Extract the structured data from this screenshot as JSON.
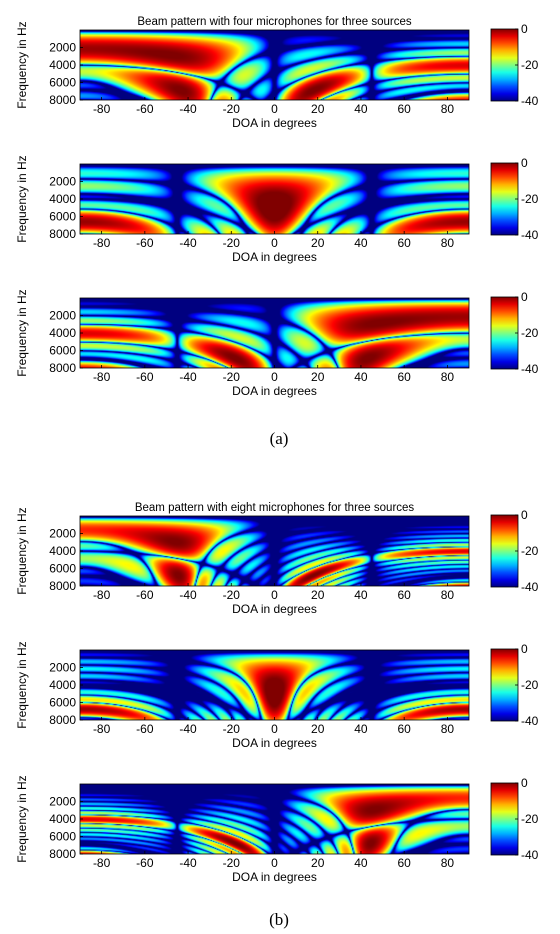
{
  "figure": {
    "panels": [
      {
        "caption": "(a)",
        "title": "Beam pattern with four microphones for three sources",
        "microphones": 4
      },
      {
        "caption": "(b)",
        "title": "Beam pattern with eight microphones for three sources",
        "microphones": 8
      }
    ]
  },
  "chart_data": [
    {
      "type": "heatmap",
      "group": "(a)",
      "title": "Beam pattern with four microphones for three sources",
      "xlabel": "DOA in degrees",
      "ylabel": "Frequency in Hz",
      "xlim": [
        -90,
        90
      ],
      "ylim": [
        0,
        8000
      ],
      "y_reversed": true,
      "x_ticks": [
        -80,
        -60,
        -40,
        -20,
        0,
        20,
        40,
        60,
        80
      ],
      "y_ticks": [
        2000,
        4000,
        6000,
        8000
      ],
      "colorbar": {
        "ticks": [
          0,
          -20,
          -40
        ],
        "range": [
          -40,
          0
        ],
        "colormap": "jet"
      },
      "mics": 4,
      "steer_deg": -45,
      "nulls_deg": [
        0,
        45
      ]
    },
    {
      "type": "heatmap",
      "group": "(a)",
      "title": "",
      "xlabel": "DOA in degrees",
      "ylabel": "Frequency in Hz",
      "xlim": [
        -90,
        90
      ],
      "ylim": [
        0,
        8000
      ],
      "y_reversed": true,
      "x_ticks": [
        -80,
        -60,
        -40,
        -20,
        0,
        20,
        40,
        60,
        80
      ],
      "y_ticks": [
        2000,
        4000,
        6000,
        8000
      ],
      "colorbar": {
        "ticks": [
          0,
          -20,
          -40
        ],
        "range": [
          -40,
          0
        ],
        "colormap": "jet"
      },
      "mics": 4,
      "steer_deg": 0,
      "nulls_deg": [
        -45,
        45
      ]
    },
    {
      "type": "heatmap",
      "group": "(a)",
      "title": "",
      "xlabel": "DOA in degrees",
      "ylabel": "Frequency in Hz",
      "xlim": [
        -90,
        90
      ],
      "ylim": [
        0,
        8000
      ],
      "y_reversed": true,
      "x_ticks": [
        -80,
        -60,
        -40,
        -20,
        0,
        20,
        40,
        60,
        80
      ],
      "y_ticks": [
        2000,
        4000,
        6000,
        8000
      ],
      "colorbar": {
        "ticks": [
          0,
          -20,
          -40
        ],
        "range": [
          -40,
          0
        ],
        "colormap": "jet"
      },
      "mics": 4,
      "steer_deg": 45,
      "nulls_deg": [
        -45,
        0
      ]
    },
    {
      "type": "heatmap",
      "group": "(b)",
      "title": "Beam pattern with eight microphones for three sources",
      "xlabel": "DOA in degrees",
      "ylabel": "Frequency in Hz",
      "xlim": [
        -90,
        90
      ],
      "ylim": [
        0,
        8000
      ],
      "y_reversed": true,
      "x_ticks": [
        -80,
        -60,
        -40,
        -20,
        0,
        20,
        40,
        60,
        80
      ],
      "y_ticks": [
        2000,
        4000,
        6000,
        8000
      ],
      "colorbar": {
        "ticks": [
          0,
          -20,
          -40
        ],
        "range": [
          -40,
          0
        ],
        "colormap": "jet"
      },
      "mics": 8,
      "steer_deg": -45,
      "nulls_deg": [
        0,
        45
      ]
    },
    {
      "type": "heatmap",
      "group": "(b)",
      "title": "",
      "xlabel": "DOA in degrees",
      "ylabel": "Frequency in Hz",
      "xlim": [
        -90,
        90
      ],
      "ylim": [
        0,
        8000
      ],
      "y_reversed": true,
      "x_ticks": [
        -80,
        -60,
        -40,
        -20,
        0,
        20,
        40,
        60,
        80
      ],
      "y_ticks": [
        2000,
        4000,
        6000,
        8000
      ],
      "colorbar": {
        "ticks": [
          0,
          -20,
          -40
        ],
        "range": [
          -40,
          0
        ],
        "colormap": "jet"
      },
      "mics": 8,
      "steer_deg": 0,
      "nulls_deg": [
        -45,
        45
      ]
    },
    {
      "type": "heatmap",
      "group": "(b)",
      "title": "",
      "xlabel": "DOA in degrees",
      "ylabel": "Frequency in Hz",
      "xlim": [
        -90,
        90
      ],
      "ylim": [
        0,
        8000
      ],
      "y_reversed": true,
      "x_ticks": [
        -80,
        -60,
        -40,
        -20,
        0,
        20,
        40,
        60,
        80
      ],
      "y_ticks": [
        2000,
        4000,
        6000,
        8000
      ],
      "colorbar": {
        "ticks": [
          0,
          -20,
          -40
        ],
        "range": [
          -40,
          0
        ],
        "colormap": "jet"
      },
      "mics": 8,
      "steer_deg": 45,
      "nulls_deg": [
        -45,
        0
      ]
    }
  ]
}
